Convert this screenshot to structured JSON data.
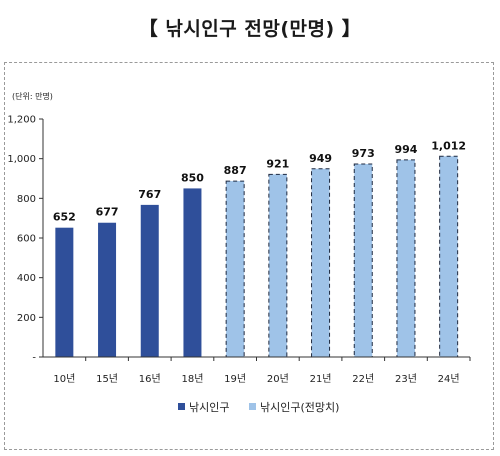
{
  "title": "【 낚시인구 전망(만명) 】",
  "chart_data": {
    "type": "bar",
    "unit_label": "(단위: 만명)",
    "categories": [
      "10년",
      "15년",
      "16년",
      "18년",
      "19년",
      "20년",
      "21년",
      "22년",
      "23년",
      "24년"
    ],
    "series": [
      {
        "name": "낚시인구",
        "color": "#2f4f9a",
        "values": [
          652,
          677,
          767,
          850,
          null,
          null,
          null,
          null,
          null,
          null
        ]
      },
      {
        "name": "낚시인구(전망치)",
        "color": "#9fc3e8",
        "values": [
          null,
          null,
          null,
          null,
          887,
          921,
          949,
          973,
          994,
          1012
        ]
      }
    ],
    "data_labels": [
      "652",
      "677",
      "767",
      "850",
      "887",
      "921",
      "949",
      "973",
      "994",
      "1,012"
    ],
    "ylim": [
      0,
      1200
    ],
    "yticks": [
      {
        "value": 0,
        "label": "-"
      },
      {
        "value": 200,
        "label": "200"
      },
      {
        "value": 400,
        "label": "400"
      },
      {
        "value": 600,
        "label": "600"
      },
      {
        "value": 800,
        "label": "800"
      },
      {
        "value": 1000,
        "label": "1,000"
      },
      {
        "value": 1200,
        "label": "1,200"
      }
    ],
    "grid": false,
    "legend_position": "bottom"
  }
}
